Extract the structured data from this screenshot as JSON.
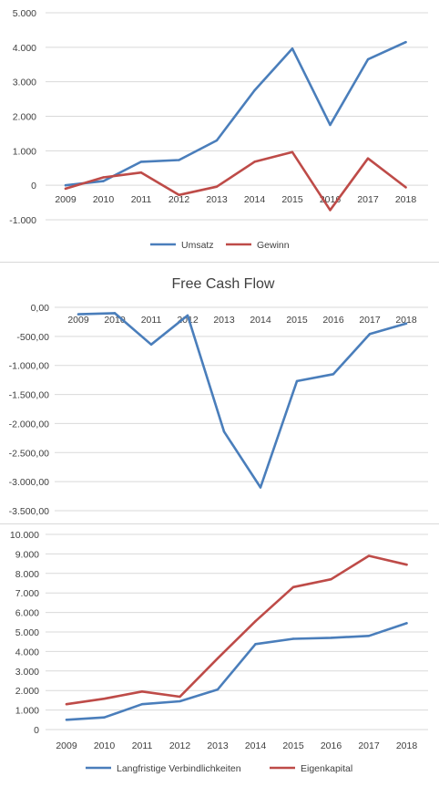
{
  "colors": {
    "blue": "#4a7ebb",
    "red": "#be4b48",
    "grid": "#d9d9d9",
    "text": "#404040"
  },
  "chart_data": [
    {
      "type": "line",
      "title": "",
      "categories": [
        "2009",
        "2010",
        "2011",
        "2012",
        "2013",
        "2014",
        "2015",
        "2016",
        "2017",
        "2018"
      ],
      "series": [
        {
          "name": "Umsatz",
          "color": "#4a7ebb",
          "values": [
            0,
            120,
            680,
            730,
            1300,
            2750,
            3960,
            1750,
            3650,
            4150
          ]
        },
        {
          "name": "Gewinn",
          "color": "#be4b48",
          "values": [
            -100,
            230,
            370,
            -280,
            -40,
            680,
            960,
            -720,
            780,
            -60
          ]
        }
      ],
      "yticks": [
        -1000,
        0,
        1000,
        2000,
        3000,
        4000,
        5000
      ],
      "ytick_labels": [
        "-1.000",
        "0",
        "1.000",
        "2.000",
        "3.000",
        "4.000",
        "5.000"
      ],
      "ylim": [
        -1000,
        5000
      ],
      "grid": true,
      "legend_position": "bottom"
    },
    {
      "type": "line",
      "title": "Free Cash Flow",
      "categories": [
        "2009",
        "2010",
        "2011",
        "2012",
        "2013",
        "2014",
        "2015",
        "2016",
        "2017",
        "2018"
      ],
      "series": [
        {
          "color": "#4a7ebb",
          "values": [
            -120,
            -100,
            -640,
            -140,
            -2140,
            -3100,
            -1270,
            -1150,
            -460,
            -280
          ]
        }
      ],
      "yticks": [
        0,
        -500,
        -1000,
        -1500,
        -2000,
        -2500,
        -3000,
        -3500
      ],
      "ytick_labels": [
        "0,00",
        "-500,00",
        "-1.000,00",
        "-1.500,00",
        "-2.000,00",
        "-2.500,00",
        "-3.000,00",
        "-3.500,00"
      ],
      "ylim": [
        -3500,
        0
      ],
      "grid": true
    },
    {
      "type": "line",
      "title": "",
      "categories": [
        "2009",
        "2010",
        "2011",
        "2012",
        "2013",
        "2014",
        "2015",
        "2016",
        "2017",
        "2018"
      ],
      "series": [
        {
          "name": "Langfristige Verbindlichkeiten",
          "color": "#4a7ebb",
          "values": [
            500,
            620,
            1300,
            1450,
            2050,
            4380,
            4650,
            4700,
            4800,
            5450
          ]
        },
        {
          "name": "Eigenkapital",
          "color": "#be4b48",
          "values": [
            1300,
            1580,
            1950,
            1680,
            3650,
            5550,
            7300,
            7700,
            8900,
            8450
          ]
        }
      ],
      "yticks": [
        0,
        1000,
        2000,
        3000,
        4000,
        5000,
        6000,
        7000,
        8000,
        9000,
        10000
      ],
      "ytick_labels": [
        "0",
        "1.000",
        "2.000",
        "3.000",
        "4.000",
        "5.000",
        "6.000",
        "7.000",
        "8.000",
        "9.000",
        "10.000"
      ],
      "ylim": [
        0,
        10000
      ],
      "grid": true,
      "legend_position": "bottom"
    }
  ]
}
